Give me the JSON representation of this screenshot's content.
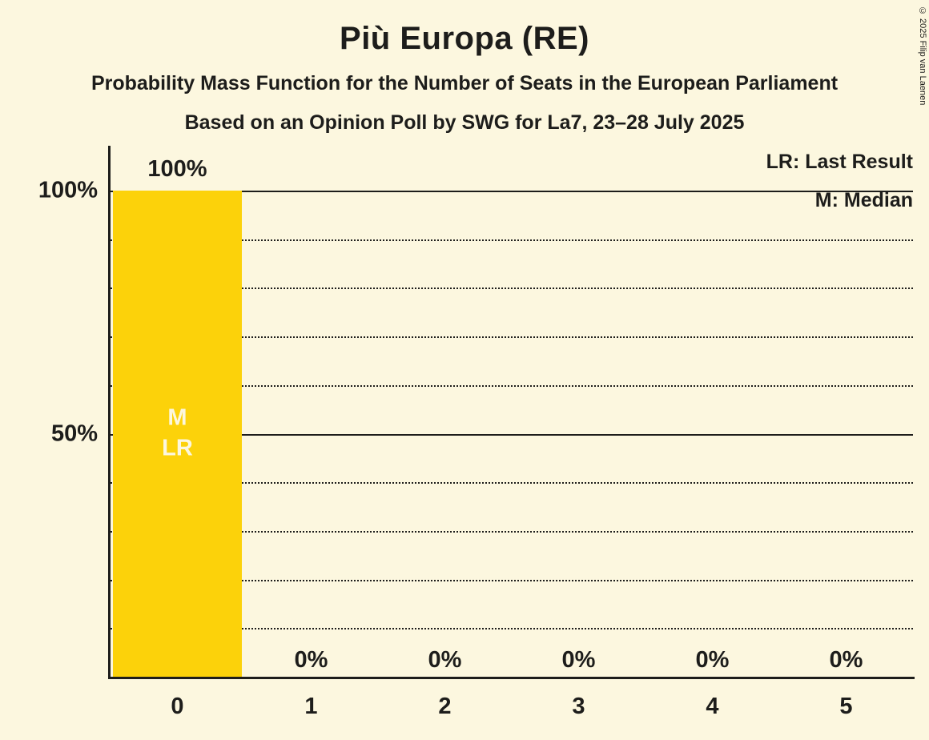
{
  "page": {
    "background": "#FCF7DF",
    "text_color": "#1D1D1B"
  },
  "header": {
    "title": "Più Europa (RE)",
    "subtitle1": "Probability Mass Function for the Number of Seats in the European Parliament",
    "subtitle2": "Based on an Opinion Poll by SWG for La7, 23–28 July 2025"
  },
  "copyright": "© 2025 Filip van Laenen",
  "legend": {
    "lr": "LR: Last Result",
    "m": "M: Median"
  },
  "chart_data": {
    "type": "bar",
    "title": "Più Europa (RE)",
    "categories": [
      "0",
      "1",
      "2",
      "3",
      "4",
      "5"
    ],
    "values": [
      100,
      0,
      0,
      0,
      0,
      0
    ],
    "value_labels": [
      "100%",
      "0%",
      "0%",
      "0%",
      "0%",
      "0%"
    ],
    "bar_annotations": [
      [
        "M",
        "LR"
      ],
      [],
      [],
      [],
      [],
      []
    ],
    "annotation_meanings": {
      "LR": "Last Result",
      "M": "Median"
    },
    "xlabel": "",
    "ylabel": "",
    "ylim": [
      0,
      100
    ],
    "yticks": [
      {
        "value": 100,
        "label": "100%"
      },
      {
        "value": 50,
        "label": "50%"
      }
    ],
    "gridlines": {
      "solid": [
        100,
        50
      ],
      "dotted": [
        90,
        80,
        70,
        60,
        40,
        30,
        20,
        10
      ]
    },
    "grid": true,
    "legend_position": "top-right",
    "bar_color": "#FCD20A",
    "bar_text_color": "#FCF7DF"
  }
}
